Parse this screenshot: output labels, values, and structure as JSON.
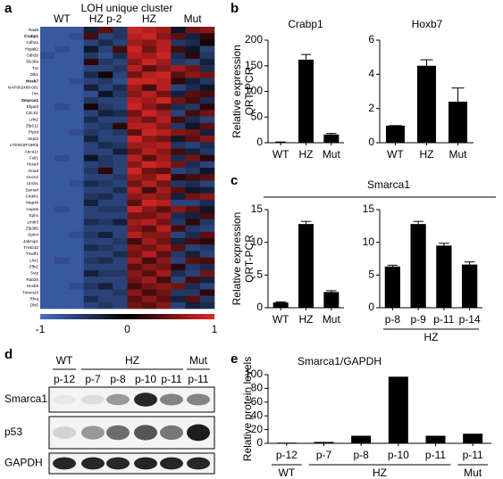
{
  "panels": [
    "a",
    "b",
    "c",
    "d",
    "e"
  ],
  "heatmap": {
    "title": "LOH unique cluster",
    "groups": [
      "WT",
      "HZ p-2",
      "HZ",
      "Mut"
    ],
    "genes": [
      "Rad8",
      "Crabp1",
      "Cdh2a",
      "Ybgalt2",
      "Cdh2b",
      "Slc38a",
      "Tnr",
      "Dlk1",
      "Hoxb7",
      "NAP002468-001",
      "Pm",
      "Smarca1",
      "Efgat3",
      "Cdc1l1",
      "Lrfn2",
      "Zfp612",
      "Ptprd",
      "Sept3",
      "1700019F19Rik",
      "Aeca1c",
      "Fstl1",
      "Hoxa8",
      "Aloa8",
      "Gucn2",
      "Unc5c",
      "Sema4",
      "Cmklr1",
      "Map4k",
      "Capn8",
      "Ephx",
      "Lmtk3",
      "Zfp385",
      "Spin4",
      "Jakmip1",
      "Tmsb10",
      "Tmeff1",
      "Lhx1",
      "Elfn2",
      "Svip",
      "Rab38",
      "Hoxb8",
      "Tmem26",
      "Rhoj",
      "Dlx5"
    ],
    "values": [
      [
        -0.8,
        -0.8,
        -0.8,
        -0.3,
        0.4,
        -0.5,
        0.9,
        0.8,
        0.7,
        -0.2,
        0.5,
        0.6
      ],
      [
        -0.8,
        -0.8,
        -0.7,
        0.3,
        -0.6,
        -0.5,
        0.8,
        0.9,
        0.6,
        0.4,
        -0.3,
        0.2
      ],
      [
        -0.8,
        -0.8,
        -0.8,
        -0.6,
        -0.4,
        -0.6,
        0.7,
        0.6,
        0.8,
        -0.5,
        -0.4,
        0.1
      ],
      [
        -0.8,
        -0.7,
        -0.8,
        -0.2,
        -0.6,
        0.3,
        0.9,
        0.5,
        0.8,
        0.3,
        -0.2,
        -0.6
      ],
      [
        -0.7,
        -0.8,
        -0.8,
        -0.5,
        -0.7,
        -0.4,
        0.8,
        0.7,
        0.9,
        -0.4,
        0.2,
        -0.5
      ],
      [
        -0.8,
        -0.8,
        -0.8,
        0.2,
        -0.5,
        -0.6,
        0.6,
        0.9,
        0.7,
        -0.5,
        -0.6,
        -0.3
      ],
      [
        -0.8,
        -0.8,
        -0.8,
        -0.6,
        -0.6,
        -0.5,
        0.8,
        0.4,
        0.6,
        0.7,
        0.5,
        -0.4
      ],
      [
        -0.8,
        -0.8,
        -0.8,
        -0.4,
        0.1,
        -0.6,
        0.5,
        0.8,
        0.9,
        0.4,
        0.6,
        0.5
      ],
      [
        -0.8,
        -0.8,
        -0.7,
        -0.6,
        -0.5,
        -0.7,
        0.9,
        0.9,
        0.8,
        0.2,
        -0.3,
        -0.5
      ],
      [
        -0.8,
        -0.8,
        -0.8,
        -0.3,
        -0.6,
        -0.4,
        0.7,
        0.3,
        0.8,
        -0.6,
        -0.4,
        -0.2
      ],
      [
        -0.8,
        -0.8,
        -0.8,
        -0.7,
        -0.2,
        -0.5,
        0.6,
        0.8,
        0.5,
        -0.3,
        0.4,
        0.3
      ],
      [
        -0.8,
        -0.8,
        -0.8,
        -0.5,
        -0.6,
        -0.6,
        0.8,
        0.7,
        0.9,
        0.5,
        0.3,
        -0.4
      ],
      [
        -0.8,
        -0.7,
        -0.8,
        0.1,
        -0.5,
        -0.6,
        0.9,
        0.6,
        0.4,
        -0.4,
        -0.5,
        0.2
      ],
      [
        -0.8,
        -0.8,
        -0.8,
        -0.6,
        -0.3,
        -0.4,
        0.5,
        0.9,
        0.7,
        -0.6,
        0.3,
        0.5
      ],
      [
        -0.8,
        -0.8,
        -0.8,
        -0.4,
        -0.6,
        -0.6,
        0.7,
        0.5,
        0.8,
        0.3,
        -0.4,
        -0.6
      ],
      [
        -0.8,
        -0.8,
        -0.8,
        -0.6,
        -0.5,
        0.2,
        0.8,
        0.8,
        0.6,
        -0.5,
        -0.2,
        0.4
      ],
      [
        -0.8,
        -0.8,
        -0.7,
        -0.5,
        -0.6,
        -0.5,
        0.4,
        0.9,
        0.8,
        0.6,
        0.5,
        -0.3
      ],
      [
        -0.8,
        -0.8,
        -0.8,
        -0.3,
        -0.6,
        -0.6,
        0.9,
        0.6,
        0.5,
        -0.2,
        0.4,
        0.6
      ],
      [
        -0.8,
        -0.8,
        -0.8,
        -0.6,
        -0.4,
        -0.5,
        0.7,
        0.7,
        0.8,
        -0.5,
        -0.6,
        -0.4
      ],
      [
        -0.8,
        -0.8,
        -0.8,
        -0.6,
        -0.6,
        -0.3,
        0.5,
        0.8,
        0.6,
        0.3,
        -0.3,
        -0.5
      ],
      [
        -0.8,
        -0.7,
        -0.8,
        -0.2,
        -0.5,
        -0.6,
        0.8,
        0.4,
        0.7,
        -0.4,
        0.5,
        0.2
      ],
      [
        -0.8,
        -0.8,
        -0.8,
        -0.6,
        -0.5,
        -0.6,
        0.6,
        0.9,
        0.8,
        0.5,
        -0.4,
        -0.6
      ],
      [
        -0.8,
        -0.8,
        -0.8,
        -0.5,
        0.2,
        -0.6,
        0.9,
        0.5,
        0.4,
        -0.6,
        -0.5,
        -0.2
      ],
      [
        -0.8,
        -0.8,
        -0.8,
        -0.6,
        -0.6,
        -0.5,
        0.7,
        0.6,
        0.9,
        0.2,
        0.3,
        0.4
      ],
      [
        -0.8,
        -0.8,
        -0.7,
        -0.4,
        -0.5,
        -0.6,
        0.5,
        0.8,
        0.5,
        -0.5,
        -0.4,
        -0.6
      ],
      [
        -0.8,
        -0.8,
        -0.8,
        -0.6,
        -0.6,
        -0.4,
        0.8,
        0.3,
        0.7,
        0.4,
        -0.2,
        -0.3
      ],
      [
        -0.8,
        -0.8,
        -0.8,
        -0.5,
        -0.4,
        -0.6,
        0.6,
        0.7,
        0.6,
        -0.3,
        0.5,
        0.6
      ],
      [
        -0.8,
        -0.8,
        -0.8,
        -0.3,
        -0.6,
        -0.6,
        0.4,
        0.9,
        0.8,
        -0.6,
        -0.6,
        -0.4
      ],
      [
        -0.8,
        -0.7,
        -0.8,
        -0.6,
        -0.5,
        -0.5,
        0.9,
        0.6,
        0.4,
        0.6,
        0.4,
        -0.2
      ],
      [
        -0.8,
        -0.8,
        -0.8,
        -0.6,
        -0.6,
        -0.6,
        0.5,
        0.5,
        0.7,
        -0.4,
        -0.3,
        0.3
      ],
      [
        -0.8,
        -0.8,
        -0.8,
        -0.4,
        -0.5,
        -0.3,
        0.7,
        0.8,
        0.5,
        -0.5,
        0.2,
        -0.5
      ],
      [
        -0.8,
        -0.8,
        -0.8,
        -0.6,
        -0.6,
        -0.6,
        0.6,
        0.4,
        0.8,
        0.3,
        -0.5,
        -0.6
      ],
      [
        -0.8,
        -0.8,
        -0.7,
        -0.5,
        -0.3,
        -0.6,
        0.8,
        0.6,
        0.6,
        -0.6,
        -0.4,
        0.4
      ],
      [
        -0.8,
        -0.8,
        -0.8,
        -0.6,
        -0.6,
        -0.5,
        0.3,
        0.7,
        0.5,
        -0.3,
        0.3,
        0.2
      ],
      [
        -0.8,
        -0.8,
        -0.8,
        -0.4,
        -0.5,
        -0.6,
        0.6,
        0.5,
        0.7,
        0.4,
        -0.6,
        -0.5
      ],
      [
        -0.8,
        -0.8,
        -0.8,
        -0.6,
        -0.6,
        -0.4,
        0.5,
        0.8,
        0.4,
        -0.5,
        -0.3,
        -0.6
      ],
      [
        -0.8,
        -0.7,
        -0.8,
        -0.5,
        -0.4,
        -0.6,
        0.7,
        0.3,
        0.6,
        -0.6,
        0.4,
        0.3
      ],
      [
        -0.8,
        -0.8,
        -0.8,
        -0.6,
        -0.6,
        -0.6,
        0.4,
        0.6,
        0.5,
        0.2,
        -0.5,
        -0.4
      ],
      [
        -0.8,
        -0.8,
        -0.8,
        -0.3,
        -0.5,
        -0.5,
        0.6,
        0.4,
        0.7,
        -0.4,
        -0.6,
        0.5
      ],
      [
        -0.8,
        -0.8,
        -0.8,
        -0.6,
        -0.6,
        -0.6,
        0.5,
        0.7,
        0.3,
        -0.6,
        0.3,
        -0.3
      ],
      [
        -0.8,
        -0.8,
        -0.7,
        -0.5,
        -0.3,
        -0.6,
        0.3,
        0.5,
        0.6,
        0.5,
        -0.4,
        -0.6
      ],
      [
        -0.8,
        -0.8,
        -0.8,
        -0.6,
        -0.6,
        -0.5,
        0.6,
        0.3,
        0.5,
        -0.5,
        -0.5,
        0.2
      ],
      [
        -0.8,
        -0.8,
        -0.8,
        -0.4,
        -0.6,
        -0.6,
        0.4,
        0.6,
        0.4,
        -0.3,
        0.4,
        -0.5
      ],
      [
        -0.8,
        -0.8,
        -0.8,
        -0.6,
        -0.5,
        -0.6,
        0.5,
        0.4,
        0.6,
        -0.6,
        -0.3,
        -0.4
      ]
    ],
    "colorbar_ticks": [
      -1,
      0,
      1
    ]
  },
  "chart_data": [
    {
      "type": "bar",
      "title": "Crabp1",
      "ylabel": [
        "Relative expression",
        "QRT-PCR"
      ],
      "categories": [
        "WT",
        "HZ",
        "Mut"
      ],
      "values": [
        1,
        162,
        16
      ],
      "errors": [
        0.5,
        10,
        2
      ],
      "ylim": [
        0,
        200
      ],
      "yticks": [
        0,
        50,
        100,
        150,
        200
      ],
      "color": "#000000"
    },
    {
      "type": "bar",
      "title": "Hoxb7",
      "categories": [
        "WT",
        "HZ",
        "Mut"
      ],
      "values": [
        1,
        4.5,
        2.4
      ],
      "errors": [
        0,
        0.35,
        0.8
      ],
      "ylim": [
        0,
        6
      ],
      "yticks": [
        0,
        2,
        4,
        6
      ],
      "color": "#000000"
    },
    {
      "type": "bar",
      "title": "Smarca1",
      "ylabel": [
        "Relative expression",
        "QRT-PCR"
      ],
      "categories": [
        "WT",
        "HZ",
        "Mut"
      ],
      "values": [
        0.8,
        12.8,
        2.4
      ],
      "errors": [
        0.1,
        0.4,
        0.2
      ],
      "ylim": [
        0,
        15
      ],
      "yticks": [
        0,
        5,
        10,
        15
      ],
      "color": "#000000"
    },
    {
      "type": "bar",
      "categories": [
        "p-8",
        "p-9",
        "p-11",
        "p-14"
      ],
      "groups": [
        "HZ"
      ],
      "values": [
        6.3,
        12.8,
        9.5,
        6.6
      ],
      "errors": [
        0.2,
        0.4,
        0.35,
        0.4
      ],
      "ylim": [
        0,
        15
      ],
      "yticks": [
        0,
        5,
        10,
        15
      ],
      "color": "#000000"
    },
    {
      "type": "bar",
      "title": "Smarca1/GAPDH",
      "ylabel": [
        "Relative protein levels"
      ],
      "categories": [
        "p-12",
        "p-7",
        "p-8",
        "p-10",
        "p-11",
        "p-11"
      ],
      "groups": [
        "WT",
        "HZ",
        "Mut"
      ],
      "values": [
        1,
        2,
        11,
        97,
        11,
        14
      ],
      "ylim": [
        0,
        100
      ],
      "yticks": [
        0,
        20,
        40,
        60,
        80,
        100
      ],
      "color": "#000000"
    }
  ],
  "blot": {
    "groups": [
      "WT",
      "HZ",
      "Mut"
    ],
    "lanes": [
      "p-12",
      "p-7",
      "p-8",
      "p-10",
      "p-11",
      "p-11"
    ],
    "rows": [
      {
        "name": "Smarca1",
        "intensity": [
          0.05,
          0.1,
          0.4,
          0.9,
          0.5,
          0.5
        ]
      },
      {
        "name": "p53",
        "intensity": [
          0.15,
          0.4,
          0.6,
          0.7,
          0.55,
          0.95
        ]
      },
      {
        "name": "GAPDH",
        "intensity": [
          0.9,
          0.9,
          0.9,
          0.92,
          0.9,
          0.9
        ]
      }
    ]
  }
}
